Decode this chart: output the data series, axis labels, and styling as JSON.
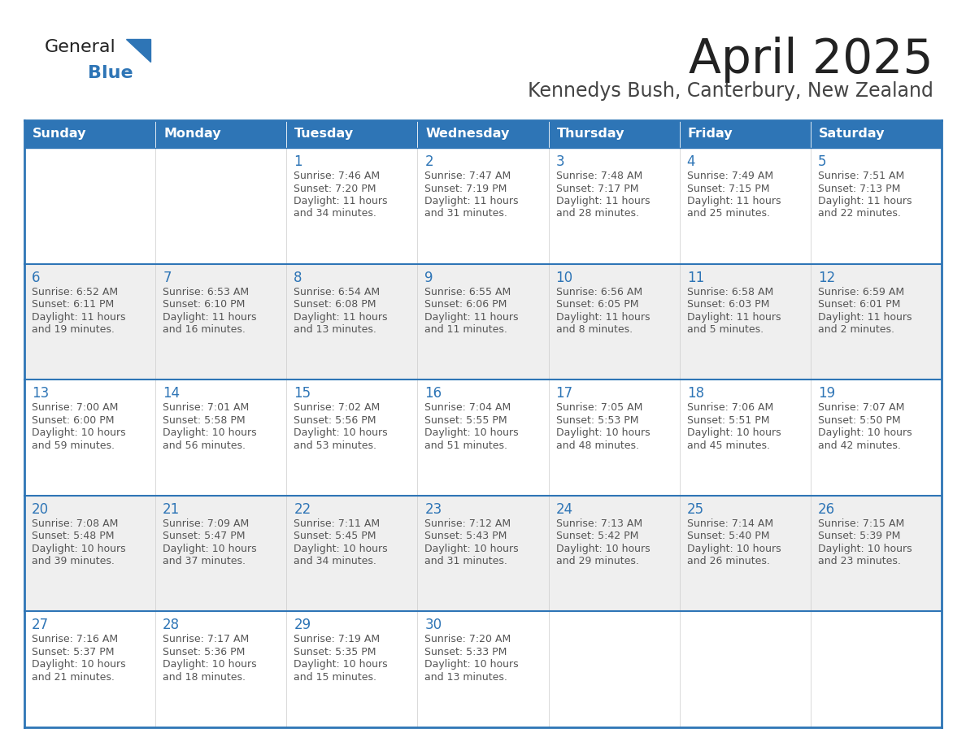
{
  "title": "April 2025",
  "subtitle": "Kennedys Bush, Canterbury, New Zealand",
  "header_bg": "#2E75B6",
  "header_text_color": "#FFFFFF",
  "days_of_week": [
    "Sunday",
    "Monday",
    "Tuesday",
    "Wednesday",
    "Thursday",
    "Friday",
    "Saturday"
  ],
  "row_colors": [
    "#FFFFFF",
    "#EFEFEF"
  ],
  "cell_border_color": "#2E75B6",
  "day_num_color": "#2E75B6",
  "cell_text_color": "#555555",
  "title_color": "#222222",
  "subtitle_color": "#444444",
  "logo_general_color": "#222222",
  "logo_blue_color": "#2E75B6",
  "calendar_data": [
    [
      {
        "day": "",
        "lines": []
      },
      {
        "day": "",
        "lines": []
      },
      {
        "day": "1",
        "lines": [
          "Sunrise: 7:46 AM",
          "Sunset: 7:20 PM",
          "Daylight: 11 hours",
          "and 34 minutes."
        ]
      },
      {
        "day": "2",
        "lines": [
          "Sunrise: 7:47 AM",
          "Sunset: 7:19 PM",
          "Daylight: 11 hours",
          "and 31 minutes."
        ]
      },
      {
        "day": "3",
        "lines": [
          "Sunrise: 7:48 AM",
          "Sunset: 7:17 PM",
          "Daylight: 11 hours",
          "and 28 minutes."
        ]
      },
      {
        "day": "4",
        "lines": [
          "Sunrise: 7:49 AM",
          "Sunset: 7:15 PM",
          "Daylight: 11 hours",
          "and 25 minutes."
        ]
      },
      {
        "day": "5",
        "lines": [
          "Sunrise: 7:51 AM",
          "Sunset: 7:13 PM",
          "Daylight: 11 hours",
          "and 22 minutes."
        ]
      }
    ],
    [
      {
        "day": "6",
        "lines": [
          "Sunrise: 6:52 AM",
          "Sunset: 6:11 PM",
          "Daylight: 11 hours",
          "and 19 minutes."
        ]
      },
      {
        "day": "7",
        "lines": [
          "Sunrise: 6:53 AM",
          "Sunset: 6:10 PM",
          "Daylight: 11 hours",
          "and 16 minutes."
        ]
      },
      {
        "day": "8",
        "lines": [
          "Sunrise: 6:54 AM",
          "Sunset: 6:08 PM",
          "Daylight: 11 hours",
          "and 13 minutes."
        ]
      },
      {
        "day": "9",
        "lines": [
          "Sunrise: 6:55 AM",
          "Sunset: 6:06 PM",
          "Daylight: 11 hours",
          "and 11 minutes."
        ]
      },
      {
        "day": "10",
        "lines": [
          "Sunrise: 6:56 AM",
          "Sunset: 6:05 PM",
          "Daylight: 11 hours",
          "and 8 minutes."
        ]
      },
      {
        "day": "11",
        "lines": [
          "Sunrise: 6:58 AM",
          "Sunset: 6:03 PM",
          "Daylight: 11 hours",
          "and 5 minutes."
        ]
      },
      {
        "day": "12",
        "lines": [
          "Sunrise: 6:59 AM",
          "Sunset: 6:01 PM",
          "Daylight: 11 hours",
          "and 2 minutes."
        ]
      }
    ],
    [
      {
        "day": "13",
        "lines": [
          "Sunrise: 7:00 AM",
          "Sunset: 6:00 PM",
          "Daylight: 10 hours",
          "and 59 minutes."
        ]
      },
      {
        "day": "14",
        "lines": [
          "Sunrise: 7:01 AM",
          "Sunset: 5:58 PM",
          "Daylight: 10 hours",
          "and 56 minutes."
        ]
      },
      {
        "day": "15",
        "lines": [
          "Sunrise: 7:02 AM",
          "Sunset: 5:56 PM",
          "Daylight: 10 hours",
          "and 53 minutes."
        ]
      },
      {
        "day": "16",
        "lines": [
          "Sunrise: 7:04 AM",
          "Sunset: 5:55 PM",
          "Daylight: 10 hours",
          "and 51 minutes."
        ]
      },
      {
        "day": "17",
        "lines": [
          "Sunrise: 7:05 AM",
          "Sunset: 5:53 PM",
          "Daylight: 10 hours",
          "and 48 minutes."
        ]
      },
      {
        "day": "18",
        "lines": [
          "Sunrise: 7:06 AM",
          "Sunset: 5:51 PM",
          "Daylight: 10 hours",
          "and 45 minutes."
        ]
      },
      {
        "day": "19",
        "lines": [
          "Sunrise: 7:07 AM",
          "Sunset: 5:50 PM",
          "Daylight: 10 hours",
          "and 42 minutes."
        ]
      }
    ],
    [
      {
        "day": "20",
        "lines": [
          "Sunrise: 7:08 AM",
          "Sunset: 5:48 PM",
          "Daylight: 10 hours",
          "and 39 minutes."
        ]
      },
      {
        "day": "21",
        "lines": [
          "Sunrise: 7:09 AM",
          "Sunset: 5:47 PM",
          "Daylight: 10 hours",
          "and 37 minutes."
        ]
      },
      {
        "day": "22",
        "lines": [
          "Sunrise: 7:11 AM",
          "Sunset: 5:45 PM",
          "Daylight: 10 hours",
          "and 34 minutes."
        ]
      },
      {
        "day": "23",
        "lines": [
          "Sunrise: 7:12 AM",
          "Sunset: 5:43 PM",
          "Daylight: 10 hours",
          "and 31 minutes."
        ]
      },
      {
        "day": "24",
        "lines": [
          "Sunrise: 7:13 AM",
          "Sunset: 5:42 PM",
          "Daylight: 10 hours",
          "and 29 minutes."
        ]
      },
      {
        "day": "25",
        "lines": [
          "Sunrise: 7:14 AM",
          "Sunset: 5:40 PM",
          "Daylight: 10 hours",
          "and 26 minutes."
        ]
      },
      {
        "day": "26",
        "lines": [
          "Sunrise: 7:15 AM",
          "Sunset: 5:39 PM",
          "Daylight: 10 hours",
          "and 23 minutes."
        ]
      }
    ],
    [
      {
        "day": "27",
        "lines": [
          "Sunrise: 7:16 AM",
          "Sunset: 5:37 PM",
          "Daylight: 10 hours",
          "and 21 minutes."
        ]
      },
      {
        "day": "28",
        "lines": [
          "Sunrise: 7:17 AM",
          "Sunset: 5:36 PM",
          "Daylight: 10 hours",
          "and 18 minutes."
        ]
      },
      {
        "day": "29",
        "lines": [
          "Sunrise: 7:19 AM",
          "Sunset: 5:35 PM",
          "Daylight: 10 hours",
          "and 15 minutes."
        ]
      },
      {
        "day": "30",
        "lines": [
          "Sunrise: 7:20 AM",
          "Sunset: 5:33 PM",
          "Daylight: 10 hours",
          "and 13 minutes."
        ]
      },
      {
        "day": "",
        "lines": []
      },
      {
        "day": "",
        "lines": []
      },
      {
        "day": "",
        "lines": []
      }
    ]
  ]
}
